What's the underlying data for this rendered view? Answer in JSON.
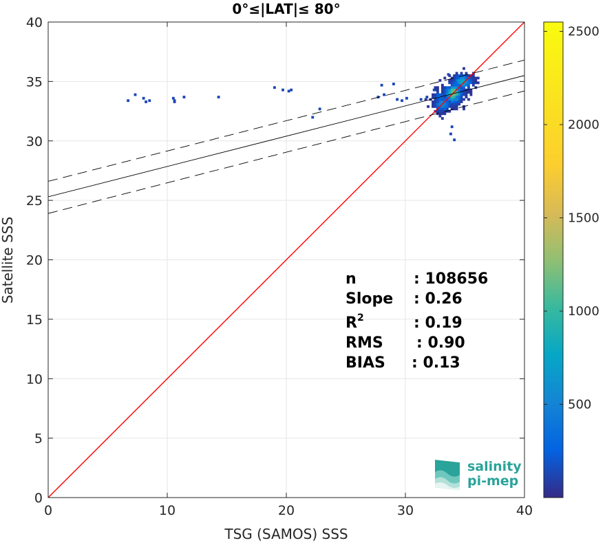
{
  "chart_data": {
    "type": "heatmap",
    "title": "0°≤|LAT|≤ 80°",
    "xlabel": "TSG (SAMOS) SSS",
    "ylabel": "Satellite SSS",
    "xlim": [
      0,
      40
    ],
    "ylim": [
      0,
      40
    ],
    "xticks": [
      "0",
      "10",
      "20",
      "30",
      "40"
    ],
    "yticks": [
      "0",
      "5",
      "10",
      "15",
      "20",
      "25",
      "30",
      "35",
      "40"
    ],
    "grid": true,
    "colorbar": {
      "colormap": "parula",
      "range": [
        0,
        2550
      ],
      "ticks": [
        "500",
        "1000",
        "1500",
        "2000",
        "2500"
      ],
      "tick_values": [
        500,
        1000,
        1500,
        2000,
        2500
      ]
    },
    "lines": [
      {
        "kind": "identity",
        "color": "#ff0000",
        "x": [
          0,
          40
        ],
        "y": [
          0,
          40
        ]
      },
      {
        "kind": "regression",
        "color": "#000000",
        "x": [
          0,
          40
        ],
        "y": [
          25.3,
          35.5
        ]
      },
      {
        "kind": "regression-upper",
        "color": "#000000",
        "dash": true,
        "x": [
          0,
          40
        ],
        "y": [
          26.6,
          36.8
        ]
      },
      {
        "kind": "regression-lower",
        "color": "#000000",
        "dash": true,
        "x": [
          0,
          40
        ],
        "y": [
          23.9,
          34.2
        ]
      }
    ],
    "density_clusters": [
      {
        "x": 34.0,
        "y": 34.0,
        "sx": 0.45,
        "sy": 0.5,
        "n": 420,
        "peak": 0.55
      },
      {
        "x": 34.8,
        "y": 35.0,
        "sx": 0.5,
        "sy": 0.35,
        "n": 260,
        "peak": 0.35
      },
      {
        "x": 33.1,
        "y": 33.1,
        "sx": 0.4,
        "sy": 0.35,
        "n": 200,
        "peak": 0.25
      },
      {
        "x": 32.9,
        "y": 33.7,
        "sx": 0.3,
        "sy": 0.25,
        "n": 90,
        "peak": 0.15
      }
    ],
    "scattered_points": [
      [
        6.6,
        33.3
      ],
      [
        7.2,
        33.8
      ],
      [
        7.9,
        33.5
      ],
      [
        8.1,
        33.2
      ],
      [
        8.4,
        33.3
      ],
      [
        10.4,
        33.5
      ],
      [
        10.5,
        33.2
      ],
      [
        10.5,
        33.3
      ],
      [
        11.3,
        33.6
      ],
      [
        14.2,
        33.6
      ],
      [
        18.9,
        34.4
      ],
      [
        19.6,
        34.2
      ],
      [
        20.1,
        34.1
      ],
      [
        20.3,
        34.2
      ],
      [
        22.1,
        31.9
      ],
      [
        22.7,
        32.6
      ],
      [
        27.6,
        33.6
      ],
      [
        28.1,
        33.8
      ],
      [
        27.9,
        34.6
      ],
      [
        28.9,
        34.7
      ],
      [
        29.2,
        33.4
      ],
      [
        29.6,
        33.3
      ],
      [
        30.0,
        33.5
      ],
      [
        31.2,
        33.4
      ],
      [
        31.7,
        33.6
      ],
      [
        33.8,
        31.1
      ],
      [
        33.7,
        30.5
      ],
      [
        34.0,
        30.0
      ],
      [
        33.5,
        35.5
      ],
      [
        32.3,
        34.2
      ]
    ],
    "stats": [
      {
        "label": "n",
        "value": ": 108656"
      },
      {
        "label": "Slope",
        "value": ": 0.26"
      },
      {
        "label": "R",
        "sup": "2",
        "value": ": 0.19"
      },
      {
        "label": "RMS",
        "value": ": 0.90"
      },
      {
        "label": "BIAS",
        "value": ": 0.13"
      }
    ]
  },
  "logo": {
    "line1": "salinity",
    "line2": "pi-mep",
    "icon": "salinity-wave-logo-icon"
  }
}
